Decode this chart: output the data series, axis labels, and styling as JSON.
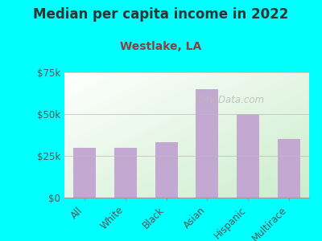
{
  "title": "Median per capita income in 2022",
  "subtitle": "Westlake, LA",
  "categories": [
    "All",
    "White",
    "Black",
    "Asian",
    "Hispanic",
    "Multirace"
  ],
  "values": [
    30000,
    30000,
    33000,
    65000,
    50000,
    35000
  ],
  "bar_color": "#C3A8D1",
  "background_color": "#00FFFF",
  "chart_bg_top_left": "#FFFFFF",
  "chart_bg_bottom_right": "#CCEECC",
  "title_color": "#333333",
  "subtitle_color": "#8B4040",
  "tick_label_color": "#555555",
  "ylim": [
    0,
    75000
  ],
  "yticks": [
    0,
    25000,
    50000,
    75000
  ],
  "ytick_labels": [
    "$0",
    "$25k",
    "$50k",
    "$75k"
  ],
  "watermark": "City-Data.com",
  "title_fontsize": 12,
  "subtitle_fontsize": 10,
  "tick_fontsize": 8.5
}
